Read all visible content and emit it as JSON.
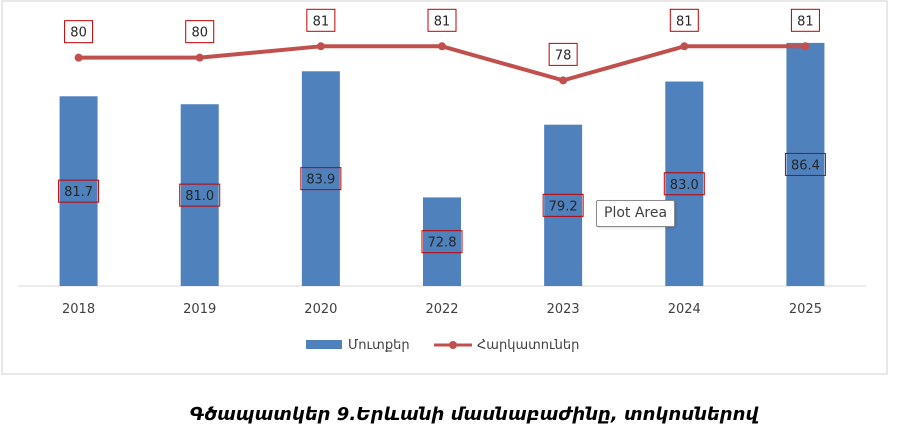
{
  "chart_data": {
    "type": "bar",
    "categories": [
      "2018",
      "2019",
      "2020",
      "2022",
      "2023",
      "2024",
      "2025"
    ],
    "series": [
      {
        "name": "Մուտքեր",
        "type": "bar",
        "color": "#4F81BD",
        "values": [
          81.7,
          81.0,
          83.9,
          72.8,
          79.2,
          83.0,
          86.4
        ],
        "labels": [
          "81.7",
          "81.0",
          "83.9",
          "72.8",
          "79.2",
          "83.0",
          "86.4"
        ]
      },
      {
        "name": "Հարկատուներ",
        "type": "line",
        "color": "#C0504D",
        "values": [
          80,
          80,
          81,
          81,
          78,
          81,
          81
        ],
        "labels": [
          "80",
          "80",
          "81",
          "81",
          "78",
          "81",
          "81"
        ]
      }
    ],
    "ylim": [
      65,
      90
    ],
    "grid": false,
    "legend_position": "bottom",
    "label_box_color": "#C00000"
  },
  "tooltip": {
    "text": "Plot Area"
  },
  "caption": {
    "text": "Գծապատկեր 9.Երևանի մասնաբաժինը, տոկոսներով"
  }
}
